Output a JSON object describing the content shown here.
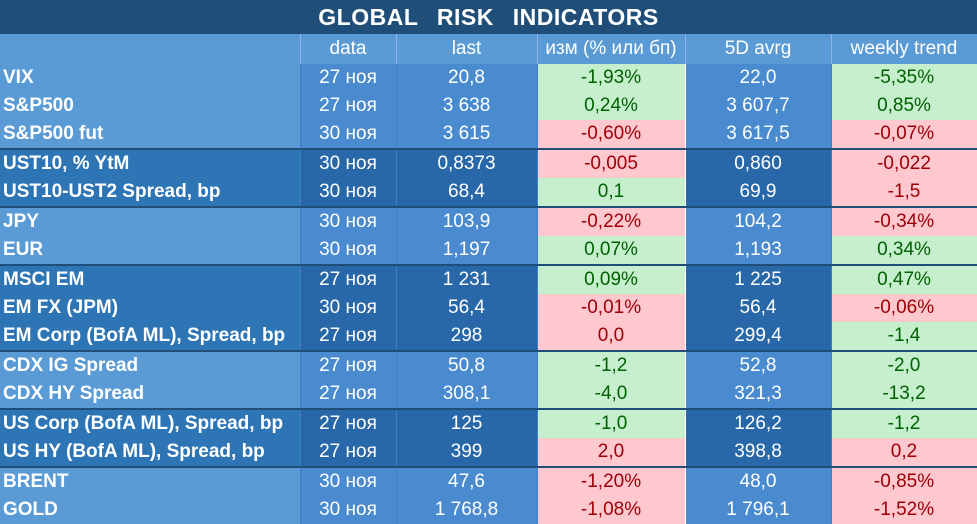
{
  "title": "GLOBAL   RISK   INDICATORS",
  "colors": {
    "positive_bg": "#c6efce",
    "positive_fg": "#006100",
    "negative_bg": "#ffc7ce",
    "negative_fg": "#9c0006"
  },
  "headers": [
    "",
    "data",
    "last",
    "изм (% или бп)",
    "5D avrg",
    "weekly trend"
  ],
  "rows": [
    {
      "name": "VIX",
      "date": "27 ноя",
      "last": "20,8",
      "change": "-1,93%",
      "avg": "22,0",
      "trend": "-5,35%"
    },
    {
      "name": "S&P500",
      "date": "27 ноя",
      "last": "3 638",
      "change": "0,24%",
      "avg": "3 607,7",
      "trend": "0,85%"
    },
    {
      "name": "S&P500 fut",
      "date": "30 ноя",
      "last": "3 615",
      "change": "-0,60%",
      "avg": "3 617,5",
      "trend": "-0,07%"
    },
    {
      "name": "UST10, % YtM",
      "date": "30 ноя",
      "last": "0,8373",
      "change": "-0,005",
      "avg": "0,860",
      "trend": "-0,022"
    },
    {
      "name": "UST10-UST2 Spread, bp",
      "date": "30 ноя",
      "last": "68,4",
      "change": "0,1",
      "avg": "69,9",
      "trend": "-1,5"
    },
    {
      "name": "JPY",
      "date": "30 ноя",
      "last": "103,9",
      "change": "-0,22%",
      "avg": "104,2",
      "trend": "-0,34%"
    },
    {
      "name": "EUR",
      "date": "30 ноя",
      "last": "1,197",
      "change": "0,07%",
      "avg": "1,193",
      "trend": "0,34%"
    },
    {
      "name": "MSCI EM",
      "date": "27 ноя",
      "last": "1 231",
      "change": "0,09%",
      "avg": "1 225",
      "trend": "0,47%"
    },
    {
      "name": "EM FX (JPM)",
      "date": "30 ноя",
      "last": "56,4",
      "change": "-0,01%",
      "avg": "56,4",
      "trend": "-0,06%"
    },
    {
      "name": "EM Corp (BofA ML), Spread, bp",
      "date": "27 ноя",
      "last": "298",
      "change": "0,0",
      "avg": "299,4",
      "trend": "-1,4"
    },
    {
      "name": "CDX IG Spread",
      "date": "27 ноя",
      "last": "50,8",
      "change": "-1,2",
      "avg": "52,8",
      "trend": "-2,0"
    },
    {
      "name": "CDX HY Spread",
      "date": "27 ноя",
      "last": "308,1",
      "change": "-4,0",
      "avg": "321,3",
      "trend": "-13,2"
    },
    {
      "name": "US Corp (BofA ML), Spread, bp",
      "date": "27 ноя",
      "last": "125",
      "change": "-1,0",
      "avg": "126,2",
      "trend": "-1,2"
    },
    {
      "name": "US HY (BofA ML), Spread, bp",
      "date": "27 ноя",
      "last": "399",
      "change": "2,0",
      "avg": "398,8",
      "trend": "0,2"
    },
    {
      "name": "BRENT",
      "date": "30 ноя",
      "last": "47,6",
      "change": "-1,20%",
      "avg": "48,0",
      "trend": "-0,85%"
    },
    {
      "name": "GOLD",
      "date": "30 ноя",
      "last": "1 768,8",
      "change": "-1,08%",
      "avg": "1 796,1",
      "trend": "-1,52%"
    }
  ]
}
